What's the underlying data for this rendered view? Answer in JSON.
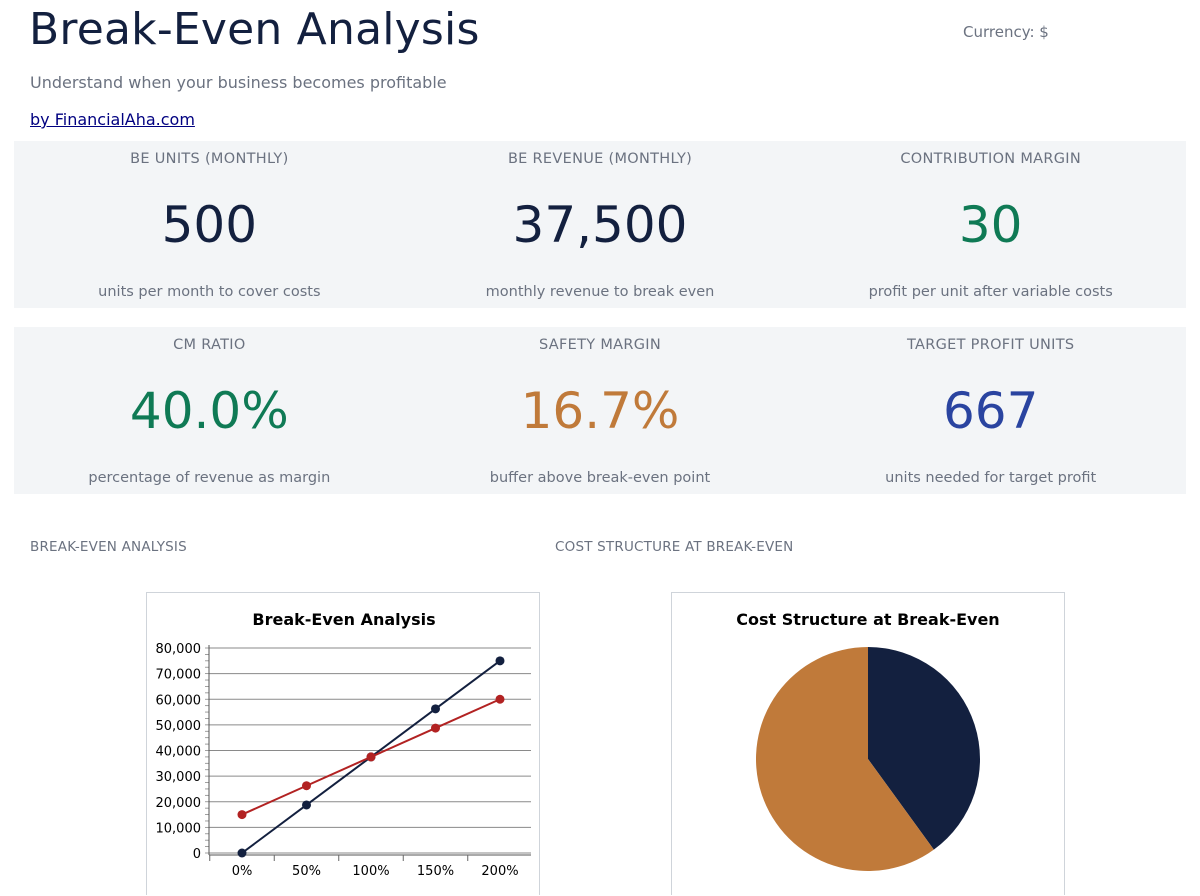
{
  "header": {
    "title": "Break-Even Analysis",
    "currency": "Currency: $",
    "subtitle": "Understand when your business becomes profitable",
    "byline": "by FinancialAha.com"
  },
  "kpis": [
    {
      "label": "BE UNITS (MONTHLY)",
      "value": "500",
      "desc": "units per month to cover costs",
      "color": "#13203f"
    },
    {
      "label": "BE REVENUE (MONTHLY)",
      "value": "37,500",
      "desc": "monthly revenue to break even",
      "color": "#13203f"
    },
    {
      "label": "CONTRIBUTION MARGIN",
      "value": "30",
      "desc": "profit per unit after variable costs",
      "color": "#0f7a55"
    },
    {
      "label": "CM RATIO",
      "value": "40.0%",
      "desc": "percentage of revenue as margin",
      "color": "#0f7a55"
    },
    {
      "label": "SAFETY MARGIN",
      "value": "16.7%",
      "desc": "buffer above break-even point",
      "color": "#c07a3a"
    },
    {
      "label": "TARGET PROFIT UNITS",
      "value": "667",
      "desc": "units needed for target profit",
      "color": "#2a44a0"
    }
  ],
  "sections": {
    "left": "BREAK-EVEN ANALYSIS",
    "right": "COST STRUCTURE AT BREAK-EVEN"
  },
  "chart_data": [
    {
      "type": "line",
      "title": "Break-Even Analysis",
      "x": [
        "0%",
        "50%",
        "100%",
        "150%",
        "200%"
      ],
      "ylim": [
        0,
        80000
      ],
      "yticks": [
        0,
        10000,
        20000,
        30000,
        40000,
        50000,
        60000,
        70000,
        80000
      ],
      "ytick_labels": [
        "0",
        "10,000",
        "20,000",
        "30,000",
        "40,000",
        "50,000",
        "60,000",
        "70,000",
        "80,000"
      ],
      "grid": true,
      "series": [
        {
          "values": [
            0,
            18750,
            37500,
            56250,
            75000
          ],
          "color": "#13203f"
        },
        {
          "values": [
            15000,
            26250,
            37500,
            48750,
            60000
          ],
          "color": "#b22222"
        }
      ]
    },
    {
      "type": "pie",
      "title": "Cost Structure at Break-Even",
      "values": [
        40,
        60
      ],
      "colors": [
        "#13203f",
        "#c07a3a"
      ]
    }
  ]
}
